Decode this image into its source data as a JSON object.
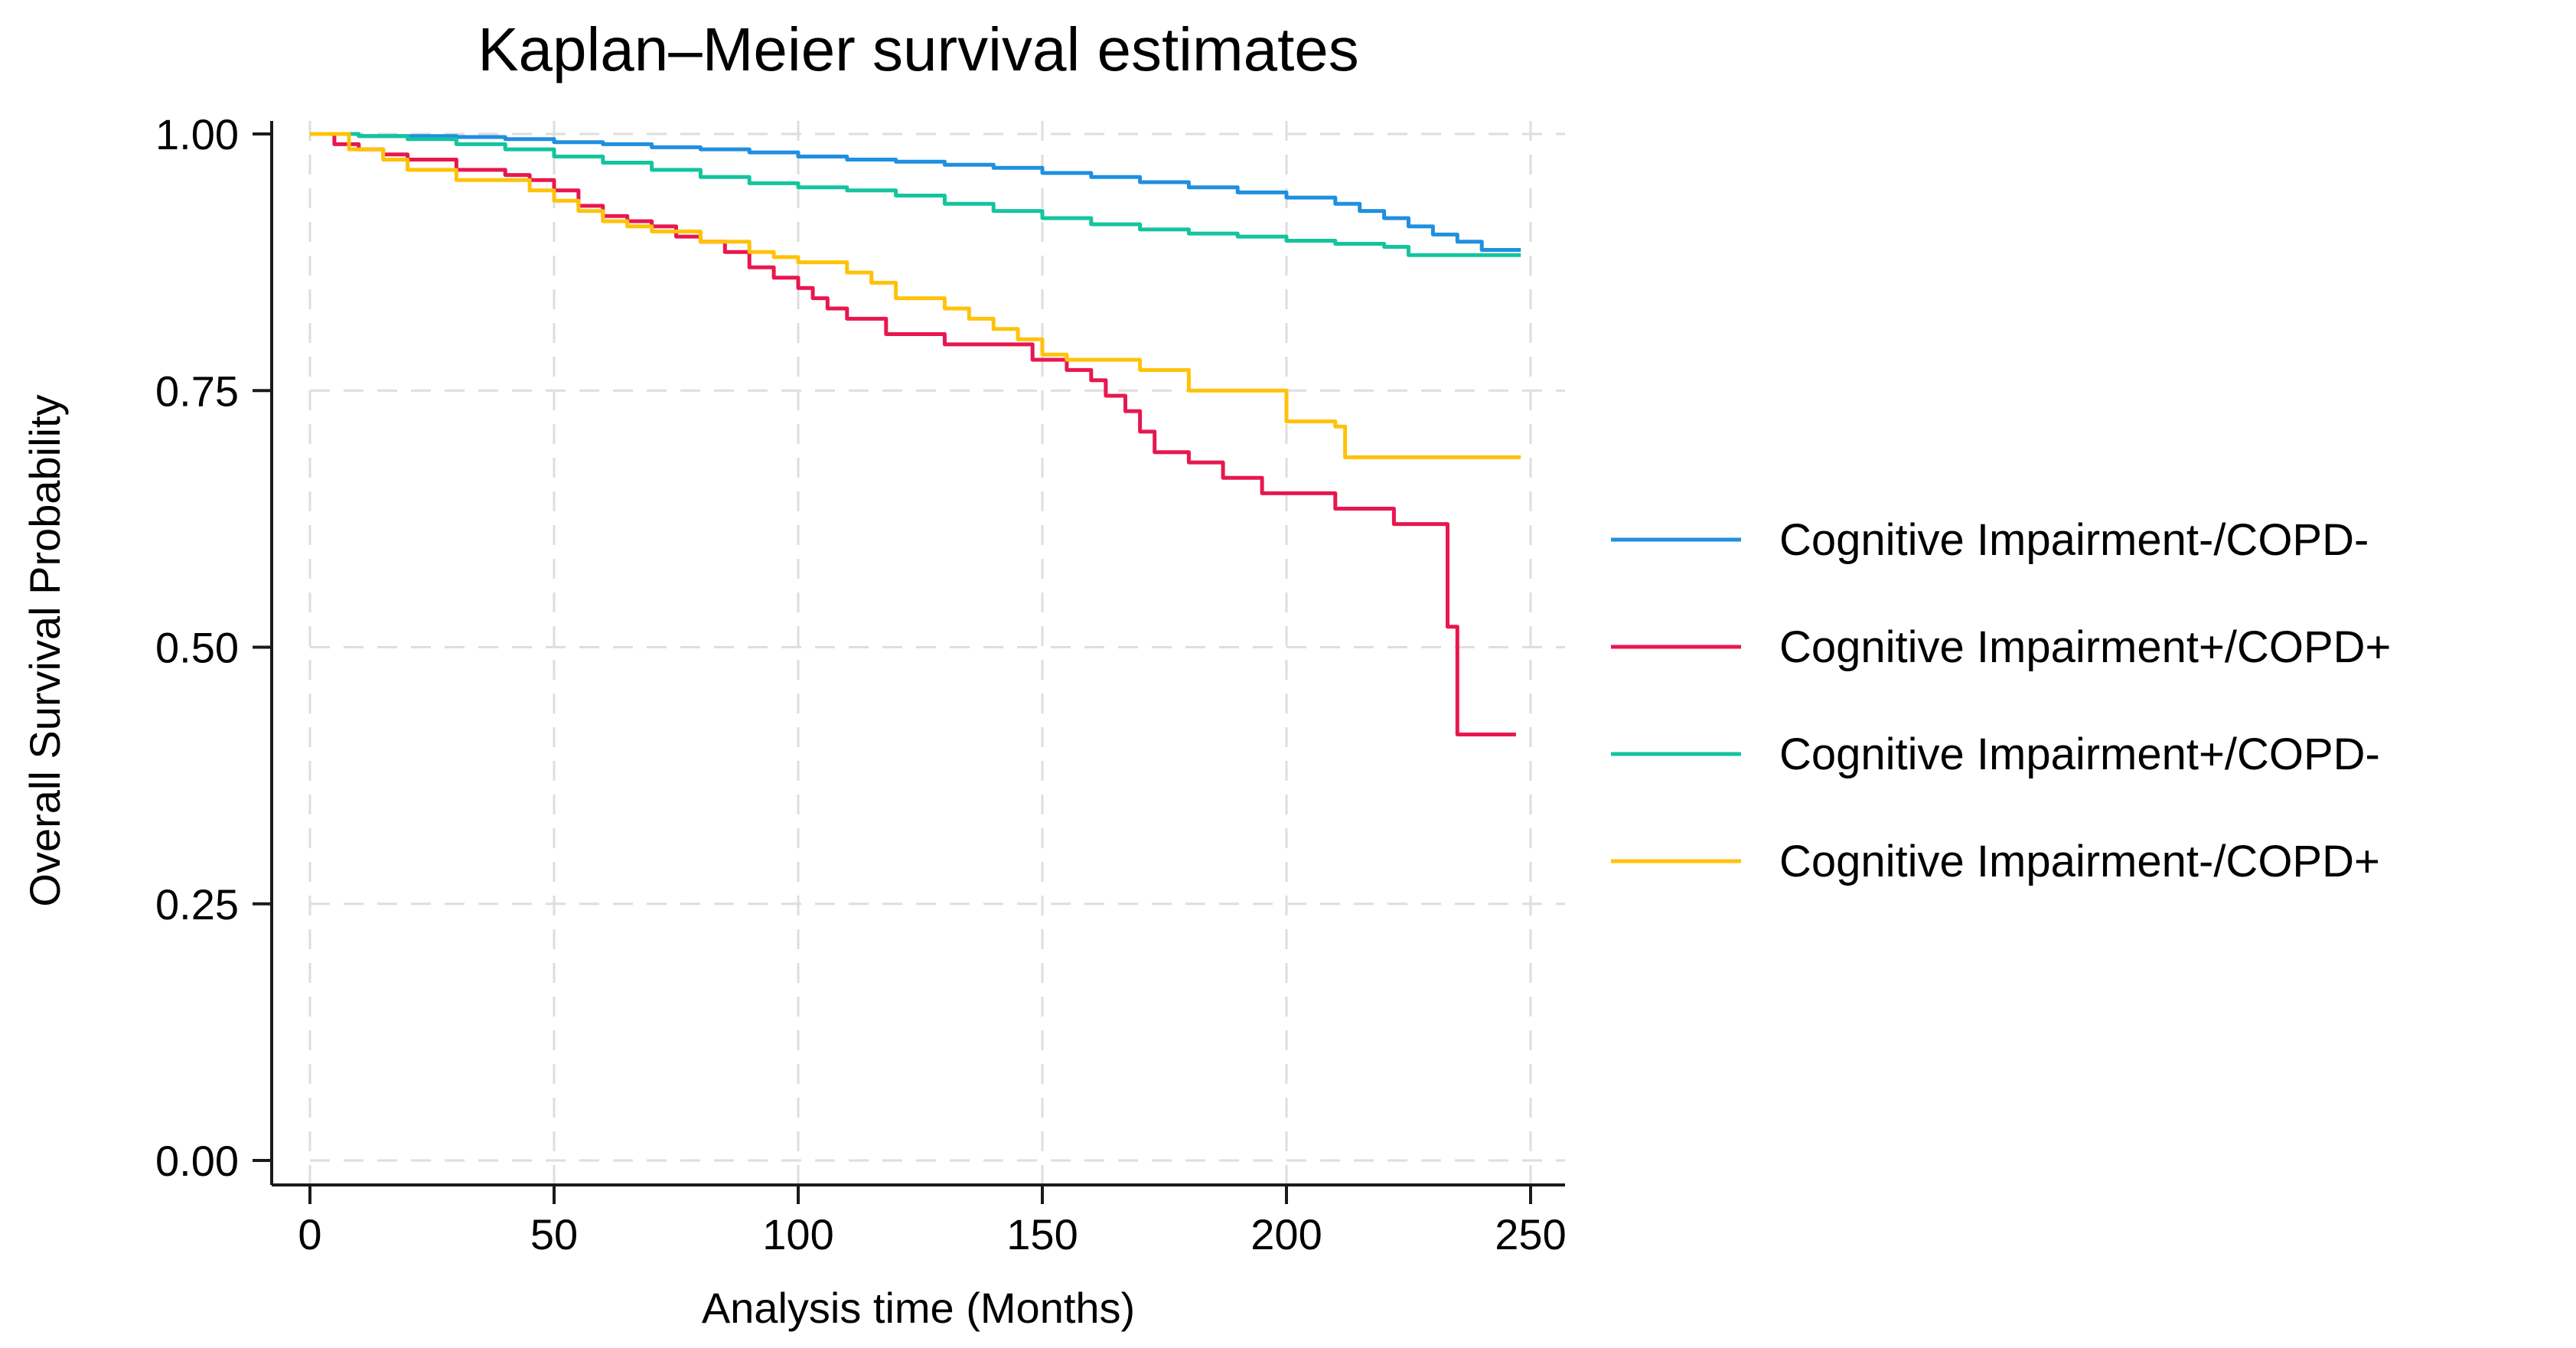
{
  "chart_data": {
    "type": "line",
    "title": "Kaplan–Meier survival estimates",
    "xlabel": "Analysis time (Months)",
    "ylabel": "Overall Survival Probability",
    "xlim": [
      0,
      250
    ],
    "ylim": [
      0,
      1
    ],
    "xticks": [
      0,
      50,
      100,
      150,
      200,
      250
    ],
    "xtick_labels": [
      "0",
      "50",
      "100",
      "150",
      "200",
      "250"
    ],
    "yticks": [
      0,
      0.25,
      0.5,
      0.75,
      1
    ],
    "ytick_labels": [
      "0.00",
      "0.25",
      "0.50",
      "0.75",
      "1.00"
    ],
    "grid": true,
    "legend_position": "right",
    "series": [
      {
        "name": "Cognitive Impairment-/COPD-",
        "color": "#1f8fe0",
        "step": true,
        "x": [
          0,
          10,
          30,
          40,
          50,
          60,
          70,
          80,
          90,
          100,
          110,
          120,
          130,
          140,
          150,
          160,
          170,
          180,
          190,
          200,
          210,
          215,
          220,
          225,
          230,
          235,
          240,
          248
        ],
        "y": [
          1.0,
          0.998,
          0.997,
          0.995,
          0.992,
          0.99,
          0.987,
          0.985,
          0.982,
          0.978,
          0.975,
          0.973,
          0.97,
          0.967,
          0.962,
          0.958,
          0.953,
          0.948,
          0.943,
          0.938,
          0.932,
          0.925,
          0.918,
          0.91,
          0.902,
          0.895,
          0.887,
          0.887
        ]
      },
      {
        "name": "Cognitive Impairment+/COPD+",
        "color": "#e8174f",
        "step": true,
        "x": [
          0,
          5,
          10,
          15,
          20,
          30,
          40,
          45,
          50,
          55,
          60,
          65,
          70,
          75,
          80,
          85,
          90,
          95,
          100,
          103,
          106,
          110,
          118,
          130,
          148,
          155,
          160,
          163,
          167,
          170,
          173,
          180,
          187,
          195,
          210,
          222,
          233,
          235,
          247
        ],
        "y": [
          1.0,
          0.99,
          0.985,
          0.98,
          0.975,
          0.965,
          0.96,
          0.955,
          0.945,
          0.93,
          0.92,
          0.915,
          0.91,
          0.9,
          0.895,
          0.885,
          0.87,
          0.86,
          0.85,
          0.84,
          0.83,
          0.82,
          0.805,
          0.795,
          0.78,
          0.77,
          0.76,
          0.745,
          0.73,
          0.71,
          0.69,
          0.68,
          0.665,
          0.65,
          0.635,
          0.62,
          0.52,
          0.415,
          0.415
        ]
      },
      {
        "name": "Cognitive Impairment+/COPD-",
        "color": "#14c49e",
        "step": true,
        "x": [
          0,
          10,
          20,
          30,
          40,
          50,
          60,
          70,
          80,
          90,
          100,
          110,
          120,
          130,
          140,
          150,
          160,
          170,
          180,
          190,
          200,
          210,
          220,
          225,
          248
        ],
        "y": [
          1.0,
          0.998,
          0.995,
          0.99,
          0.985,
          0.978,
          0.972,
          0.965,
          0.958,
          0.952,
          0.948,
          0.945,
          0.94,
          0.932,
          0.925,
          0.918,
          0.912,
          0.907,
          0.903,
          0.9,
          0.896,
          0.893,
          0.89,
          0.882,
          0.882
        ]
      },
      {
        "name": "Cognitive Impairment-/COPD+",
        "color": "#ffc20a",
        "step": true,
        "x": [
          0,
          8,
          15,
          20,
          30,
          45,
          50,
          55,
          60,
          65,
          70,
          80,
          90,
          95,
          100,
          110,
          115,
          120,
          130,
          135,
          140,
          145,
          150,
          155,
          160,
          165,
          170,
          180,
          190,
          195,
          200,
          210,
          212,
          248
        ],
        "y": [
          1.0,
          0.985,
          0.975,
          0.965,
          0.955,
          0.945,
          0.935,
          0.925,
          0.915,
          0.91,
          0.905,
          0.895,
          0.885,
          0.88,
          0.875,
          0.865,
          0.855,
          0.84,
          0.83,
          0.82,
          0.81,
          0.8,
          0.785,
          0.78,
          0.78,
          0.78,
          0.77,
          0.75,
          0.75,
          0.75,
          0.72,
          0.715,
          0.685,
          0.685
        ]
      }
    ]
  }
}
